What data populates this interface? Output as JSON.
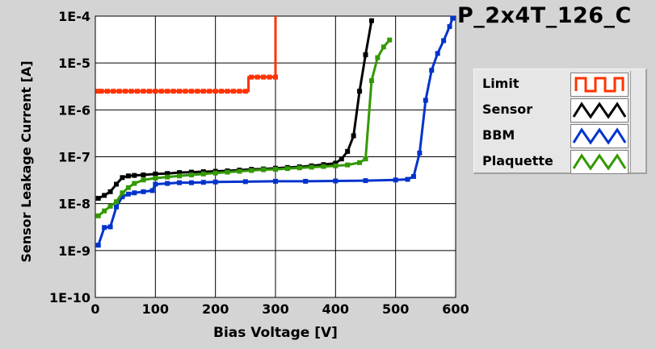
{
  "chart_data": {
    "type": "line",
    "title": "P_2x4T_126_C",
    "xlabel": "Bias Voltage [V]",
    "ylabel": "Sensor Leakage Current [A]",
    "xlim": [
      0,
      600
    ],
    "ylim": [
      1e-10,
      0.0001
    ],
    "yscale": "log",
    "grid": true,
    "legend_position": "right",
    "x_ticks": [
      "0",
      "100",
      "200",
      "300",
      "400",
      "500",
      "600"
    ],
    "y_ticks": [
      "1E-10",
      "1E-9",
      "1E-8",
      "1E-7",
      "1E-6",
      "1E-5",
      "1E-4"
    ],
    "series": [
      {
        "name": "Limit",
        "color": "#ff3300",
        "step": true,
        "markers": true,
        "x": [
          5,
          250,
          255,
          300,
          300
        ],
        "y": [
          2.5e-06,
          2.5e-06,
          5e-06,
          5e-06,
          0.0001
        ],
        "marker_x": [
          5,
          10,
          20,
          30,
          40,
          50,
          60,
          70,
          80,
          90,
          100,
          110,
          120,
          130,
          140,
          150,
          160,
          170,
          180,
          190,
          200,
          210,
          220,
          230,
          240,
          250,
          260,
          270,
          280,
          290,
          300
        ],
        "marker_y": [
          2.5e-06,
          2.5e-06,
          2.5e-06,
          2.5e-06,
          2.5e-06,
          2.5e-06,
          2.5e-06,
          2.5e-06,
          2.5e-06,
          2.5e-06,
          2.5e-06,
          2.5e-06,
          2.5e-06,
          2.5e-06,
          2.5e-06,
          2.5e-06,
          2.5e-06,
          2.5e-06,
          2.5e-06,
          2.5e-06,
          2.5e-06,
          2.5e-06,
          2.5e-06,
          2.5e-06,
          2.5e-06,
          2.5e-06,
          5e-06,
          5e-06,
          5e-06,
          5e-06,
          5e-06
        ]
      },
      {
        "name": "Sensor",
        "color": "#000000",
        "x": [
          5,
          15,
          25,
          35,
          45,
          55,
          65,
          80,
          100,
          120,
          140,
          160,
          180,
          200,
          220,
          240,
          260,
          280,
          300,
          320,
          340,
          360,
          380,
          400,
          410,
          420,
          430,
          440,
          450,
          460
        ],
        "y": [
          1.3e-08,
          1.5e-08,
          1.8e-08,
          2.6e-08,
          3.6e-08,
          3.9e-08,
          4e-08,
          4.1e-08,
          4.3e-08,
          4.4e-08,
          4.6e-08,
          4.7e-08,
          4.8e-08,
          4.9e-08,
          5e-08,
          5.2e-08,
          5.4e-08,
          5.5e-08,
          5.7e-08,
          5.9e-08,
          6.1e-08,
          6.4e-08,
          6.8e-08,
          7.3e-08,
          9e-08,
          1.3e-07,
          2.8e-07,
          2.5e-06,
          1.5e-05,
          8e-05
        ]
      },
      {
        "name": "BBM",
        "color": "#0033cc",
        "x": [
          5,
          15,
          25,
          35,
          45,
          55,
          65,
          80,
          95,
          100,
          120,
          140,
          160,
          180,
          200,
          250,
          300,
          350,
          400,
          450,
          500,
          520,
          530,
          540,
          550,
          560,
          570,
          580,
          590,
          595
        ],
        "y": [
          1.3e-09,
          3.1e-09,
          3.2e-09,
          8.5e-09,
          1.4e-08,
          1.6e-08,
          1.7e-08,
          1.8e-08,
          1.9e-08,
          2.6e-08,
          2.7e-08,
          2.8e-08,
          2.8e-08,
          2.85e-08,
          2.9e-08,
          2.95e-08,
          3e-08,
          3e-08,
          3.05e-08,
          3.1e-08,
          3.2e-08,
          3.3e-08,
          3.8e-08,
          1.2e-07,
          1.6e-06,
          7e-06,
          1.6e-05,
          3e-05,
          6e-05,
          9e-05
        ]
      },
      {
        "name": "Plaquette",
        "color": "#339900",
        "x": [
          5,
          15,
          25,
          35,
          45,
          55,
          65,
          80,
          100,
          120,
          140,
          160,
          180,
          200,
          220,
          240,
          260,
          280,
          300,
          320,
          340,
          360,
          380,
          400,
          420,
          440,
          450,
          460,
          470,
          480,
          490
        ],
        "y": [
          5.5e-09,
          7e-09,
          8.8e-09,
          1.1e-08,
          1.7e-08,
          2.2e-08,
          2.7e-08,
          3.2e-08,
          3.5e-08,
          3.7e-08,
          3.9e-08,
          4.1e-08,
          4.3e-08,
          4.5e-08,
          4.7e-08,
          4.9e-08,
          5.1e-08,
          5.3e-08,
          5.4e-08,
          5.6e-08,
          5.8e-08,
          6e-08,
          6.2e-08,
          6.4e-08,
          6.7e-08,
          7.5e-08,
          9e-08,
          4.2e-06,
          1.3e-05,
          2.2e-05,
          3.1e-05
        ]
      }
    ]
  }
}
